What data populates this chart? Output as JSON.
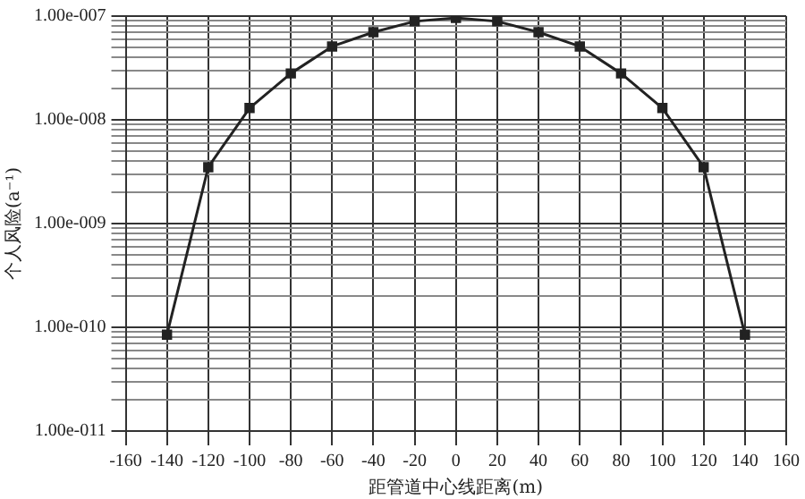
{
  "chart_data": {
    "type": "line",
    "xlabel": "距管道中心线距离(m)",
    "ylabel": "个人风险(a⁻¹)",
    "x": [
      -140,
      -120,
      -100,
      -80,
      -60,
      -40,
      -20,
      0,
      20,
      40,
      60,
      80,
      100,
      120,
      140
    ],
    "series": [
      {
        "color": "#222222",
        "values": [
          8.5e-11,
          3.5e-09,
          1.3e-08,
          2.8e-08,
          5.1e-08,
          7e-08,
          8.9e-08,
          9.6e-08,
          8.9e-08,
          7e-08,
          5.1e-08,
          2.8e-08,
          1.3e-08,
          3.5e-09,
          8.5e-11
        ]
      }
    ],
    "log": "y",
    "marker": "square",
    "line_style": "solid",
    "grid": true,
    "legend": false,
    "xlim": [
      -160,
      160
    ],
    "xticks": [
      -160,
      -140,
      -120,
      -100,
      -80,
      -60,
      -40,
      -20,
      0,
      20,
      40,
      60,
      80,
      100,
      120,
      140,
      160
    ],
    "ylim": [
      1e-11,
      1e-07
    ],
    "yticks": [
      {
        "value": 1e-11,
        "label": "1.00e-011"
      },
      {
        "value": 2e-11,
        "label": null
      },
      {
        "value": 3e-11,
        "label": null
      },
      {
        "value": 4e-11,
        "label": null
      },
      {
        "value": 5e-11,
        "label": null
      },
      {
        "value": 6e-11,
        "label": null
      },
      {
        "value": 7e-11,
        "label": null
      },
      {
        "value": 8e-11,
        "label": null
      },
      {
        "value": 9e-11,
        "label": null
      },
      {
        "value": 1e-10,
        "label": "1.00e-010"
      },
      {
        "value": 2e-10,
        "label": null
      },
      {
        "value": 3e-10,
        "label": null
      },
      {
        "value": 4e-10,
        "label": null
      },
      {
        "value": 5e-10,
        "label": null
      },
      {
        "value": 6e-10,
        "label": null
      },
      {
        "value": 7e-10,
        "label": null
      },
      {
        "value": 8e-10,
        "label": null
      },
      {
        "value": 9e-10,
        "label": null
      },
      {
        "value": 1e-09,
        "label": "1.00e-009"
      },
      {
        "value": 2e-09,
        "label": null
      },
      {
        "value": 3e-09,
        "label": null
      },
      {
        "value": 4e-09,
        "label": null
      },
      {
        "value": 5e-09,
        "label": null
      },
      {
        "value": 6e-09,
        "label": null
      },
      {
        "value": 7e-09,
        "label": null
      },
      {
        "value": 8e-09,
        "label": null
      },
      {
        "value": 9e-09,
        "label": null
      },
      {
        "value": 1e-08,
        "label": "1.00e-008"
      },
      {
        "value": 2e-08,
        "label": null
      },
      {
        "value": 3e-08,
        "label": null
      },
      {
        "value": 4e-08,
        "label": null
      },
      {
        "value": 5e-08,
        "label": null
      },
      {
        "value": 6e-08,
        "label": null
      },
      {
        "value": 7e-08,
        "label": null
      },
      {
        "value": 8e-08,
        "label": null
      },
      {
        "value": 9e-08,
        "label": null
      },
      {
        "value": 1e-07,
        "label": "1.00e-007"
      }
    ]
  }
}
